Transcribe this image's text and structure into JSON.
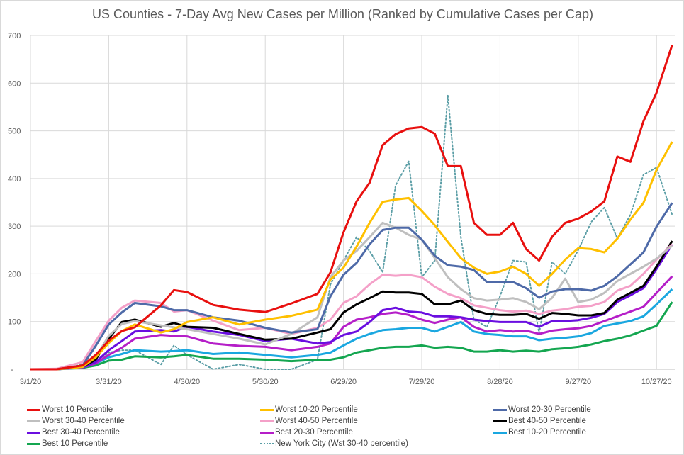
{
  "chart_data": {
    "type": "line",
    "title": "US Counties - 7-Day Avg New Cases per Million (Ranked by Cumulative Cases per Cap)",
    "xlabel": "",
    "ylabel": "",
    "x_unit": "days since 3/1/20",
    "xlim": [
      0,
      247
    ],
    "ylim": [
      0,
      700
    ],
    "grid": true,
    "legend_position": "bottom",
    "x_ticks": [
      {
        "day": 0,
        "label": "3/1/20"
      },
      {
        "day": 30,
        "label": "3/31/20"
      },
      {
        "day": 60,
        "label": "4/30/20"
      },
      {
        "day": 90,
        "label": "5/30/20"
      },
      {
        "day": 120,
        "label": "6/29/20"
      },
      {
        "day": 150,
        "label": "7/29/20"
      },
      {
        "day": 180,
        "label": "8/28/20"
      },
      {
        "day": 210,
        "label": "9/27/20"
      },
      {
        "day": 240,
        "label": "10/27/20"
      }
    ],
    "y_ticks": [
      {
        "value": 0,
        "label": "-"
      },
      {
        "value": 100,
        "label": "100"
      },
      {
        "value": 200,
        "label": "200"
      },
      {
        "value": 300,
        "label": "300"
      },
      {
        "value": 400,
        "label": "400"
      },
      {
        "value": 500,
        "label": "500"
      },
      {
        "value": 600,
        "label": "600"
      },
      {
        "value": 700,
        "label": "700"
      }
    ],
    "x": [
      0,
      10,
      20,
      25,
      30,
      35,
      40,
      50,
      55,
      60,
      70,
      80,
      90,
      100,
      110,
      115,
      120,
      125,
      130,
      135,
      140,
      145,
      150,
      155,
      160,
      165,
      170,
      175,
      180,
      185,
      190,
      195,
      200,
      205,
      210,
      215,
      220,
      225,
      230,
      235,
      240,
      246
    ],
    "series": [
      {
        "name": "Worst 10 Percentile",
        "color": "#e8100f",
        "dashed": false,
        "values": [
          0,
          0,
          8,
          30,
          60,
          80,
          88,
          134,
          166,
          162,
          135,
          125,
          120,
          138,
          158,
          203,
          287,
          352,
          391,
          470,
          493,
          505,
          508,
          494,
          426,
          426,
          307,
          282,
          282,
          307,
          252,
          228,
          278,
          307,
          316,
          331,
          352,
          446,
          435,
          520,
          580,
          680
        ]
      },
      {
        "name": "Worst 10-20 Percentile",
        "color": "#ffc000",
        "dashed": false,
        "values": [
          0,
          0,
          5,
          25,
          55,
          80,
          94,
          77,
          84,
          99,
          109,
          94,
          104,
          112,
          125,
          188,
          213,
          257,
          307,
          351,
          356,
          359,
          332,
          302,
          267,
          233,
          213,
          200,
          205,
          215,
          200,
          175,
          200,
          230,
          254,
          252,
          245,
          274,
          314,
          349,
          418,
          477
        ]
      },
      {
        "name": "Worst 20-30 Percentile",
        "color": "#4e6aa8",
        "dashed": false,
        "values": [
          0,
          0,
          8,
          49,
          94,
          119,
          139,
          132,
          124,
          124,
          109,
          102,
          87,
          77,
          84,
          153,
          198,
          223,
          262,
          292,
          297,
          297,
          272,
          238,
          218,
          215,
          208,
          183,
          183,
          183,
          170,
          150,
          163,
          168,
          168,
          165,
          175,
          195,
          220,
          245,
          299,
          349
        ]
      },
      {
        "name": "Worst 30-40 Percentile",
        "color": "#bfbfbf",
        "dashed": false,
        "values": [
          0,
          0,
          5,
          25,
          70,
          95,
          101,
          92,
          88,
          84,
          74,
          64,
          52,
          74,
          109,
          193,
          228,
          248,
          277,
          307,
          297,
          282,
          272,
          233,
          193,
          168,
          149,
          144,
          146,
          149,
          141,
          126,
          150,
          190,
          141,
          146,
          160,
          185,
          200,
          215,
          232,
          259
        ]
      },
      {
        "name": "Worst 40-50 Percentile",
        "color": "#f4a0c8",
        "dashed": false,
        "values": [
          0,
          1,
          15,
          59,
          102,
          129,
          144,
          139,
          121,
          124,
          102,
          82,
          87,
          74,
          87,
          104,
          139,
          153,
          178,
          198,
          196,
          198,
          193,
          173,
          158,
          149,
          134,
          129,
          124,
          121,
          123,
          116,
          123,
          126,
          131,
          133,
          141,
          165,
          175,
          200,
          230,
          262
        ]
      },
      {
        "name": "Best 40-50 Percentile",
        "color": "#000000",
        "dashed": false,
        "values": [
          0,
          0,
          5,
          20,
          64,
          99,
          104,
          89,
          97,
          89,
          87,
          74,
          62,
          64,
          77,
          84,
          119,
          136,
          149,
          163,
          161,
          161,
          158,
          136,
          136,
          144,
          124,
          116,
          114,
          114,
          116,
          106,
          118,
          116,
          113,
          113,
          118,
          146,
          160,
          175,
          215,
          269
        ]
      },
      {
        "name": "Best 30-40 Percentile",
        "color": "#6a0ee0",
        "dashed": false,
        "values": [
          0,
          0,
          4,
          15,
          40,
          59,
          79,
          82,
          79,
          89,
          79,
          72,
          59,
          64,
          54,
          57,
          72,
          79,
          99,
          124,
          129,
          121,
          119,
          111,
          111,
          109,
          104,
          101,
          99,
          99,
          99,
          89,
          101,
          101,
          103,
          108,
          116,
          141,
          155,
          170,
          210,
          262
        ]
      },
      {
        "name": "Best 20-30 Percentile",
        "color": "#b51ec8",
        "dashed": false,
        "values": [
          0,
          0,
          4,
          12,
          30,
          45,
          64,
          72,
          70,
          69,
          54,
          49,
          47,
          40,
          47,
          54,
          89,
          104,
          109,
          116,
          119,
          114,
          104,
          97,
          104,
          109,
          89,
          79,
          82,
          79,
          81,
          74,
          81,
          84,
          86,
          91,
          101,
          111,
          121,
          131,
          160,
          195
        ]
      },
      {
        "name": "Best 10-20 Percentile",
        "color": "#1aa7e0",
        "dashed": false,
        "values": [
          0,
          0,
          4,
          12,
          25,
          32,
          40,
          37,
          38,
          40,
          32,
          35,
          30,
          25,
          30,
          35,
          50,
          64,
          74,
          82,
          84,
          87,
          87,
          79,
          89,
          99,
          79,
          74,
          72,
          69,
          69,
          61,
          64,
          66,
          69,
          76,
          91,
          96,
          101,
          111,
          136,
          168
        ]
      },
      {
        "name": "Best 10 Percentile",
        "color": "#14a650",
        "dashed": false,
        "values": [
          0,
          0,
          3,
          8,
          18,
          20,
          27,
          25,
          27,
          30,
          22,
          22,
          20,
          17,
          20,
          20,
          25,
          35,
          40,
          45,
          47,
          47,
          50,
          45,
          47,
          45,
          37,
          37,
          40,
          37,
          39,
          37,
          42,
          44,
          47,
          52,
          59,
          64,
          71,
          81,
          91,
          141
        ]
      },
      {
        "name": "New York City (Wst 30-40 percentile)",
        "color": "#5b9ea6",
        "dashed": true,
        "values": [
          0,
          0,
          10,
          15,
          35,
          40,
          40,
          10,
          50,
          30,
          0,
          10,
          0,
          0,
          20,
          178,
          228,
          277,
          248,
          203,
          386,
          436,
          193,
          228,
          574,
          277,
          104,
          89,
          153,
          228,
          225,
          76,
          225,
          200,
          250,
          309,
          339,
          274,
          324,
          408,
          423,
          324
        ]
      }
    ]
  }
}
